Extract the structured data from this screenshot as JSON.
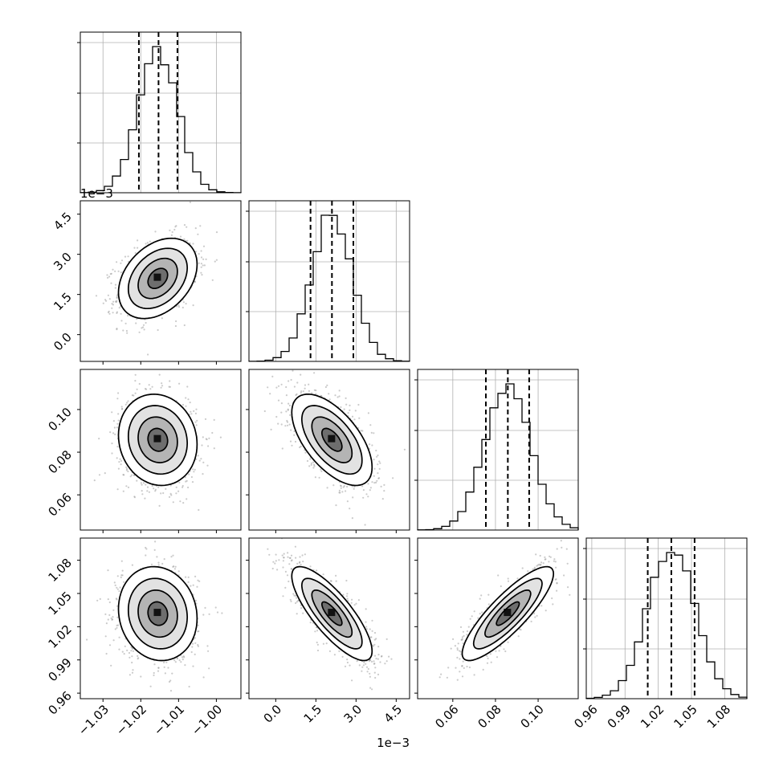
{
  "chart_data": {
    "type": "corner",
    "params": [
      {
        "mean": -1.0155,
        "sd": 0.0052,
        "quantiles": [
          -1.0205,
          -1.0153,
          -1.0103
        ],
        "range": [
          -1.036,
          -0.9935
        ],
        "ticks": [
          -1.03,
          -1.02,
          -1.01,
          -1.0
        ],
        "tick_labels": [
          "−1.03",
          "−1.02",
          "−1.01",
          "−1.00"
        ],
        "offset": ""
      },
      {
        "mean": 0.0021,
        "sd": 0.00075,
        "quantiles": [
          0.0013,
          0.0021,
          0.0029
        ],
        "range": [
          -0.001,
          0.005
        ],
        "ticks": [
          0.0,
          0.0015,
          0.003,
          0.0045
        ],
        "tick_labels": [
          "0.0",
          "1.5",
          "3.0",
          "4.5"
        ],
        "offset": "1e−3"
      },
      {
        "mean": 0.0858,
        "sd": 0.0107,
        "quantiles": [
          0.0755,
          0.0858,
          0.0958
        ],
        "range": [
          0.0435,
          0.1188
        ],
        "ticks": [
          0.06,
          0.08,
          0.1
        ],
        "tick_labels": [
          "0.06",
          "0.08",
          "0.10"
        ],
        "offset": ""
      },
      {
        "mean": 1.0318,
        "sd": 0.0212,
        "quantiles": [
          1.0105,
          1.0318,
          1.0528
        ],
        "range": [
          0.955,
          1.1
        ],
        "ticks": [
          0.96,
          0.99,
          1.02,
          1.05,
          1.08
        ],
        "tick_labels": [
          "0.96",
          "0.99",
          "1.02",
          "1.05",
          "1.08"
        ],
        "offset": ""
      }
    ],
    "correlations": [
      [
        1.0,
        0.35,
        -0.1,
        -0.1
      ],
      [
        0.35,
        1.0,
        -0.6,
        -0.8
      ],
      [
        -0.1,
        -0.6,
        1.0,
        0.85
      ],
      [
        -0.1,
        -0.8,
        0.85,
        1.0
      ]
    ],
    "contour_levels_sigma": [
      0.5,
      1.0,
      1.5,
      2.0
    ],
    "grid": true,
    "xlabel": "",
    "ylabel": "",
    "title": ""
  }
}
